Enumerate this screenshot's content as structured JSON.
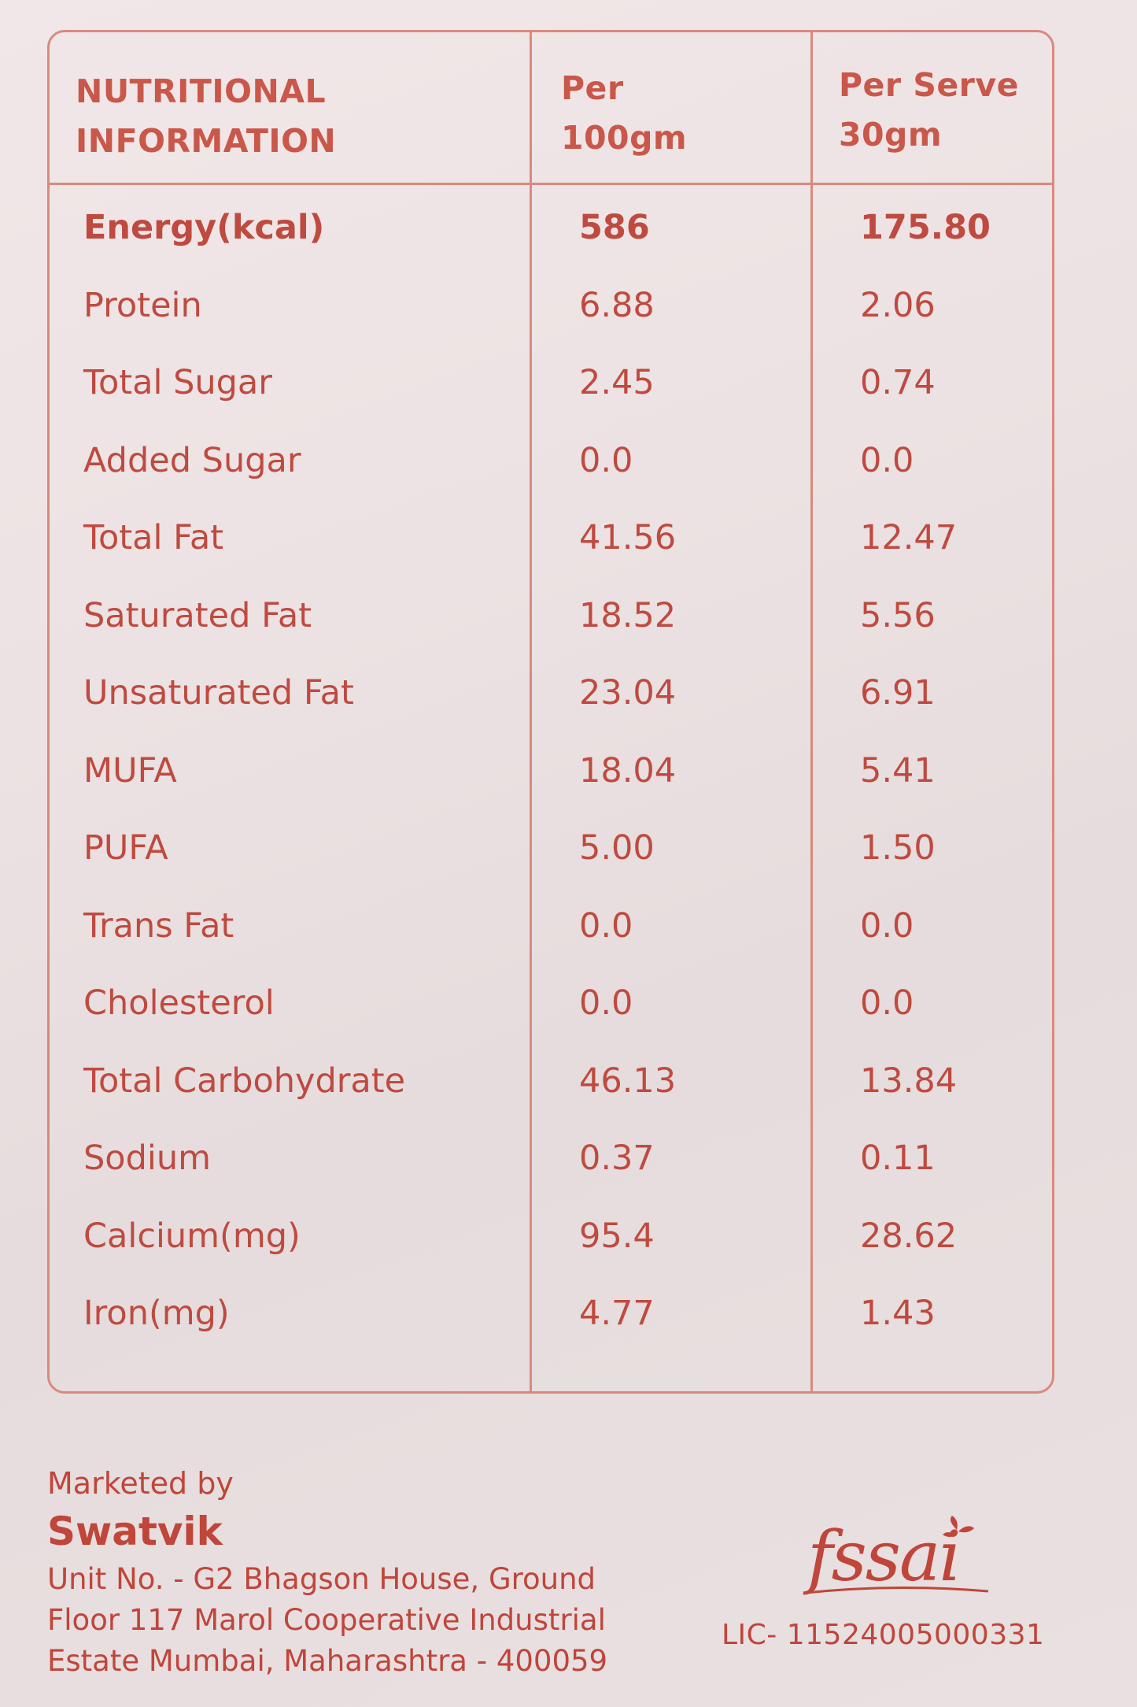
{
  "table": {
    "headers": {
      "nutrient": [
        "NUTRITIONAL",
        "INFORMATION"
      ],
      "per_100": [
        "Per",
        "100gm"
      ],
      "per_serve": [
        "Per Serve",
        "30gm"
      ]
    },
    "rows": [
      {
        "name": "Energy(kcal)",
        "per_100": "586",
        "per_serve": "175.80"
      },
      {
        "name": "Protein",
        "per_100": "6.88",
        "per_serve": "2.06"
      },
      {
        "name": "Total Sugar",
        "per_100": "2.45",
        "per_serve": "0.74"
      },
      {
        "name": "Added Sugar",
        "per_100": "0.0",
        "per_serve": "0.0"
      },
      {
        "name": "Total Fat",
        "per_100": "41.56",
        "per_serve": "12.47"
      },
      {
        "name": "Saturated Fat",
        "per_100": "18.52",
        "per_serve": "5.56"
      },
      {
        "name": "Unsaturated Fat",
        "per_100": "23.04",
        "per_serve": "6.91"
      },
      {
        "name": "MUFA",
        "per_100": "18.04",
        "per_serve": "5.41"
      },
      {
        "name": "PUFA",
        "per_100": "5.00",
        "per_serve": "1.50"
      },
      {
        "name": "Trans Fat",
        "per_100": "0.0",
        "per_serve": "0.0"
      },
      {
        "name": "Cholesterol",
        "per_100": "0.0",
        "per_serve": "0.0"
      },
      {
        "name": "Total Carbohydrate",
        "per_100": "46.13",
        "per_serve": "13.84"
      },
      {
        "name": "Sodium",
        "per_100": "0.37",
        "per_serve": "0.11"
      },
      {
        "name": "Calcium(mg)",
        "per_100": "95.4",
        "per_serve": "28.62"
      },
      {
        "name": "Iron(mg)",
        "per_100": "4.77",
        "per_serve": "1.43"
      }
    ]
  },
  "marketer": {
    "label": "Marketed by",
    "name": "Swatvik",
    "address": [
      "Unit No. - G2 Bhagson House, Ground",
      "Floor 117 Marol Cooperative Industrial",
      "Estate Mumbai, Maharashtra - 400059"
    ]
  },
  "fssai": {
    "logo_text": "fssai",
    "license": "LIC- 11524005000331"
  },
  "colors": {
    "text": "#c0453a",
    "border": "#d98a7c",
    "background": "#ece2e3"
  }
}
